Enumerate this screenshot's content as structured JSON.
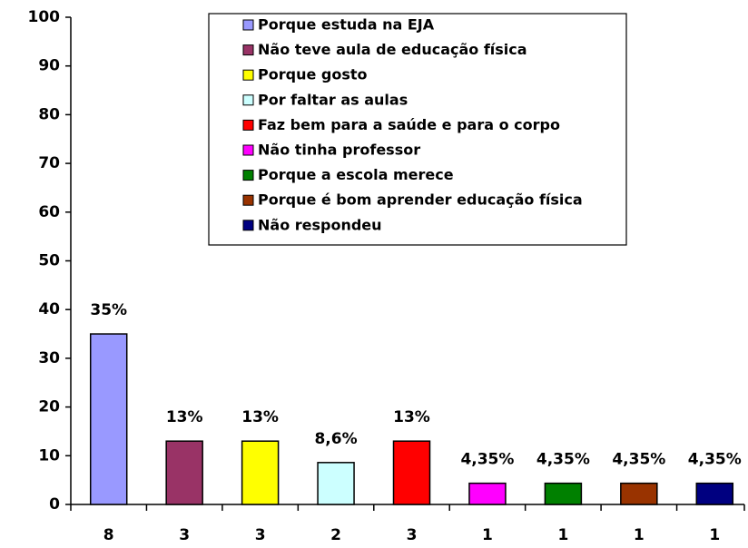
{
  "chart_data": {
    "type": "bar",
    "categories": [
      "8",
      "3",
      "3",
      "2",
      "3",
      "1",
      "1",
      "1",
      "1"
    ],
    "values": [
      35,
      13,
      13,
      8.6,
      13,
      4.35,
      4.35,
      4.35,
      4.35
    ],
    "value_labels": [
      "35%",
      "13%",
      "13%",
      "8,6%",
      "13%",
      "4,35%",
      "4,35%",
      "4,35%",
      "4,35%"
    ],
    "colors": [
      "#9999ff",
      "#993366",
      "#ffff00",
      "#ccffff",
      "#ff0000",
      "#ff00ff",
      "#008000",
      "#993300",
      "#000080"
    ],
    "legend": [
      "Porque estuda na EJA",
      "Não teve aula de educação física",
      "Porque gosto",
      "Por faltar as aulas",
      "Faz bem para a saúde e para o corpo",
      "Não tinha professor",
      "Porque a escola merece",
      "Porque é bom aprender educação física",
      "Não respondeu"
    ],
    "legend_position": "top center",
    "ylim": [
      0,
      100
    ],
    "yticks": [
      0,
      10,
      20,
      30,
      40,
      50,
      60,
      70,
      80,
      90,
      100
    ]
  }
}
